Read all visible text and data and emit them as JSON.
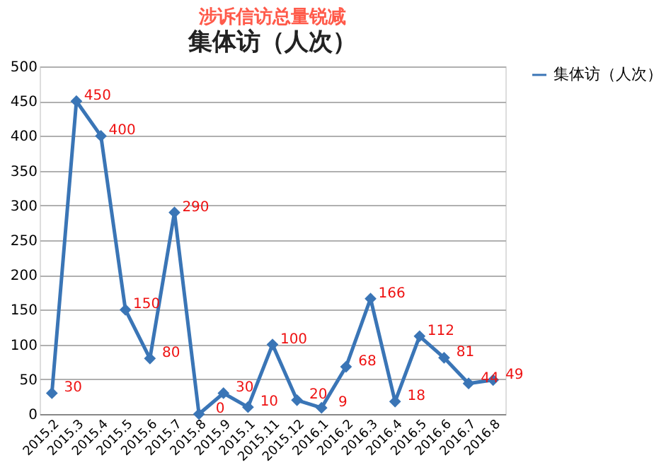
{
  "chart_data": {
    "type": "line",
    "title": "涉诉信访总量锐减",
    "subtitle": "集体访（人次）",
    "categories": [
      "2015.2",
      "2015.3",
      "2015.4",
      "2015.5",
      "2015.6",
      "2015.7",
      "2015.8",
      "2015.9",
      "2015.1",
      "2015.11",
      "2015.12",
      "2016.1",
      "2016.2",
      "2016.3",
      "2016.4",
      "2016.5",
      "2016.6",
      "2016.7",
      "2016.8"
    ],
    "series": [
      {
        "name": "集体访（人次）",
        "color": "#3a75b6",
        "values": [
          30,
          450,
          400,
          150,
          80,
          290,
          0,
          30,
          10,
          100,
          20,
          9,
          68,
          166,
          18,
          112,
          81,
          44,
          49
        ]
      }
    ],
    "ylim": [
      0,
      500
    ],
    "yticks": [
      0,
      50,
      100,
      150,
      200,
      250,
      300,
      350,
      400,
      450,
      500
    ],
    "grid": "y",
    "legend": "right",
    "marker": "diamond",
    "line_style": "solid",
    "data_labels": true
  }
}
